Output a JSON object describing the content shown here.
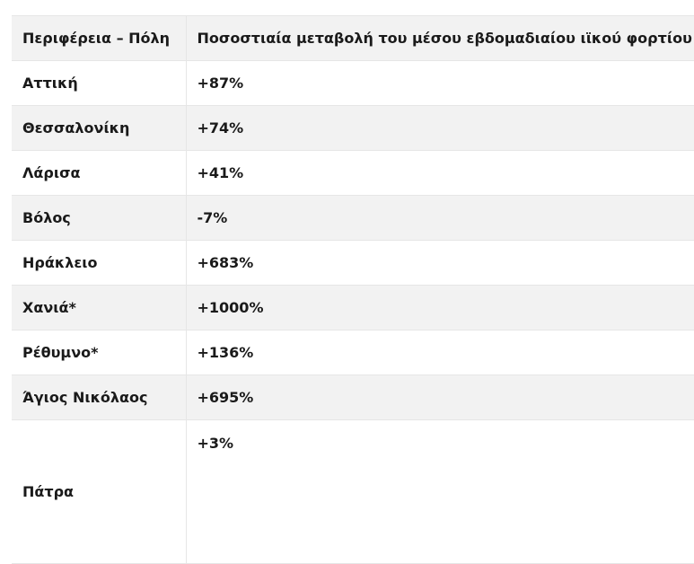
{
  "table": {
    "headers": [
      "Περιφέρεια – Πόλη",
      "Ποσοστιαία μεταβολή του μέσου εβδομαδιαίου ιϊκού φορτίου"
    ],
    "rows": [
      {
        "city": "Αττική",
        "change": "+87%"
      },
      {
        "city": "Θεσσαλονίκη",
        "change": "+74%"
      },
      {
        "city": "Λάρισα",
        "change": "+41%"
      },
      {
        "city": "Βόλος",
        "change": "-7%"
      },
      {
        "city": "Ηράκλειο",
        "change": "+683%"
      },
      {
        "city": "Χανιά*",
        "change": "+1000%"
      },
      {
        "city": "Ρέθυμνο*",
        "change": "+136%"
      },
      {
        "city": "Άγιος Νικόλαος",
        "change": "+695%"
      },
      {
        "city": "Πάτρα",
        "change": "+3%"
      }
    ]
  }
}
